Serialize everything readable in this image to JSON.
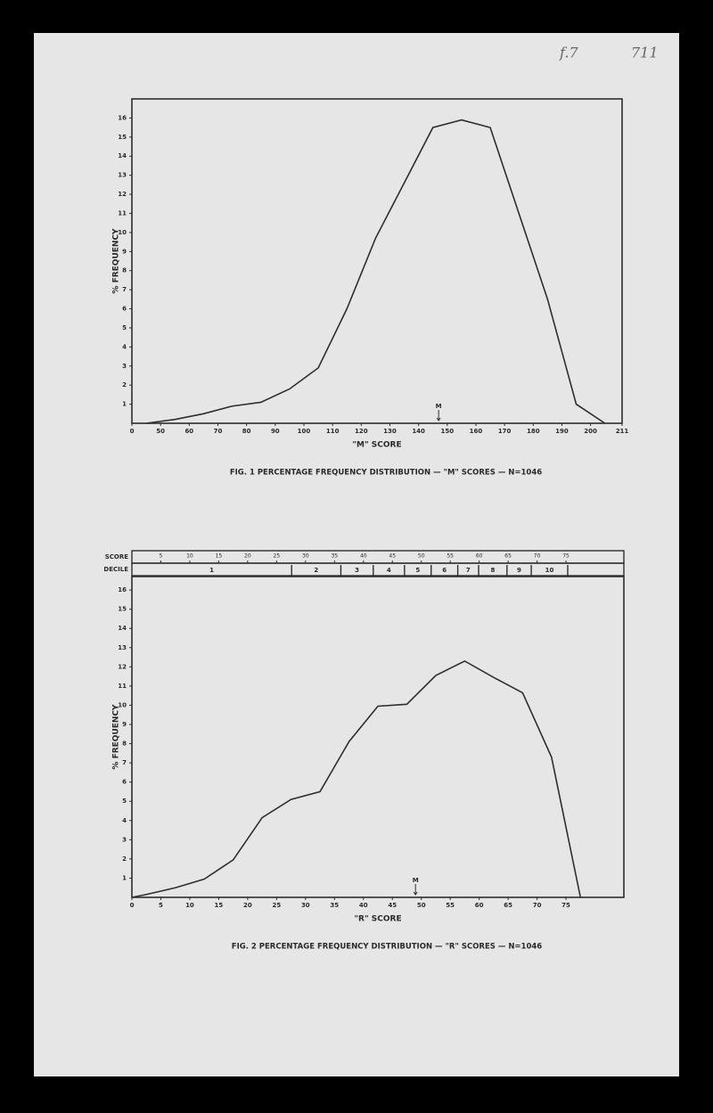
{
  "page_notes": [
    "f.7",
    "711"
  ],
  "chart_data": [
    {
      "type": "line",
      "caption": "FIG. 1   PERCENTAGE FREQUENCY DISTRIBUTION  —  \"M\" SCORES  —  N=1046",
      "xlabel": "\"M\" SCORE",
      "ylabel": "% FREQUENCY",
      "color": "#2e2e2e",
      "x": [
        45,
        55,
        65,
        75,
        85,
        95,
        105,
        115,
        125,
        135,
        145,
        155,
        165,
        175,
        185,
        195,
        205
      ],
      "values": [
        0,
        0.2,
        0.5,
        0.9,
        1.1,
        1.8,
        2.9,
        6.0,
        9.7,
        12.6,
        15.5,
        15.9,
        15.5,
        11.0,
        6.5,
        1.0,
        0
      ],
      "xlim": [
        0,
        211
      ],
      "x_break": [
        0,
        40
      ],
      "xticks": [
        0,
        50,
        60,
        70,
        80,
        90,
        100,
        110,
        120,
        130,
        140,
        150,
        160,
        170,
        180,
        190,
        200,
        211
      ],
      "ylim": [
        0,
        17
      ],
      "yticks": [
        1,
        2,
        3,
        4,
        5,
        6,
        7,
        8,
        9,
        10,
        11,
        12,
        13,
        14,
        15,
        16
      ],
      "annotation": {
        "text": "M",
        "x": 147
      }
    },
    {
      "type": "line",
      "caption": "FIG. 2   PERCENTAGE FREQUENCY DISTRIBUTION  —  \"R\" SCORES  —  N=1046",
      "xlabel": "\"R\" SCORE",
      "ylabel": "% FREQUENCY",
      "color": "#2e2e2e",
      "x": [
        0,
        2.5,
        7.5,
        12.5,
        17.5,
        22.5,
        27.5,
        32.5,
        37.5,
        42.5,
        47.5,
        52.5,
        57.5,
        62.5,
        67.5,
        72.5,
        77.5
      ],
      "values": [
        0,
        0.15,
        0.5,
        0.95,
        1.95,
        4.15,
        5.1,
        5.5,
        8.1,
        9.95,
        10.05,
        11.55,
        12.3,
        11.45,
        10.65,
        7.3,
        0
      ],
      "xlim": [
        0,
        85
      ],
      "xticks": [
        0,
        5,
        10,
        15,
        20,
        25,
        30,
        35,
        40,
        45,
        50,
        55,
        60,
        65,
        70,
        75
      ],
      "ylim": [
        0,
        16.7
      ],
      "yticks": [
        1,
        2,
        3,
        4,
        5,
        6,
        7,
        8,
        9,
        10,
        11,
        12,
        13,
        14,
        15,
        16
      ],
      "annotation": {
        "text": "M",
        "x": 49
      },
      "score_row_label": "SCORE",
      "score_ticks": [
        5,
        10,
        15,
        20,
        25,
        30,
        35,
        40,
        45,
        50,
        55,
        60,
        65,
        70,
        75
      ],
      "decile_row_label": "DECILE",
      "decile_labels": [
        "1",
        "2",
        "3",
        "4",
        "5",
        "6",
        "7",
        "8",
        "9",
        "10"
      ],
      "decile_bounds": [
        27.6,
        36.1,
        41.7,
        47.1,
        51.7,
        56.3,
        59.9,
        64.8,
        69.0,
        75.3
      ]
    }
  ]
}
